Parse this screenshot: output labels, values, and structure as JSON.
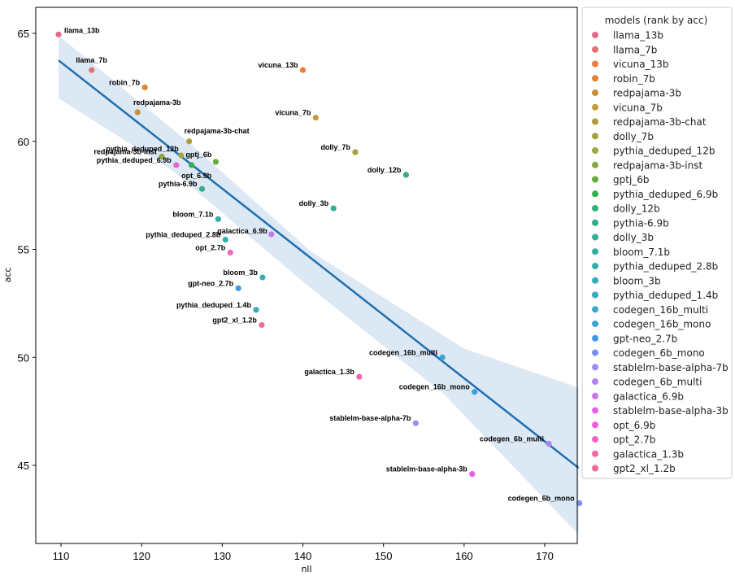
{
  "chart_data": {
    "type": "scatter",
    "title": "",
    "xlabel": "nll",
    "ylabel": "acc",
    "xlim": [
      106.8,
      177.8
    ],
    "ylim": [
      41.2,
      66.0
    ],
    "xticks": [
      110,
      120,
      130,
      140,
      150,
      160,
      170
    ],
    "yticks": [
      45,
      50,
      55,
      60,
      65
    ],
    "grid": false,
    "legend": {
      "title": "models (rank by acc)",
      "placement": "outside-right"
    },
    "regression": {
      "line": [
        [
          109.7,
          63.75
        ],
        [
          174.2,
          44.88
        ]
      ],
      "ci_band_upper": [
        [
          109.7,
          64.9
        ],
        [
          126,
          59.9
        ],
        [
          141,
          54.9
        ],
        [
          160,
          50.4
        ],
        [
          174.2,
          48.6
        ]
      ],
      "ci_band_lower": [
        [
          109.7,
          62.0
        ],
        [
          124,
          58.6
        ],
        [
          140,
          53.5
        ],
        [
          157.5,
          48.3
        ],
        [
          174.2,
          41.8
        ]
      ],
      "color": "#1f6fb0",
      "band_color": "#dce8f4"
    },
    "points": [
      {
        "name": "llama_13b",
        "x": 109.7,
        "y": 64.95,
        "color": "#e8678a",
        "label_pos": "right"
      },
      {
        "name": "llama_7b",
        "x": 113.8,
        "y": 63.3,
        "color": "#e2716f",
        "label_pos": "top"
      },
      {
        "name": "vicuna_13b",
        "x": 140.0,
        "y": 63.3,
        "color": "#ef7c3a",
        "label_pos": "left"
      },
      {
        "name": "robin_7b",
        "x": 120.4,
        "y": 62.5,
        "color": "#dd8638",
        "label_pos": "left"
      },
      {
        "name": "redpajama-3b",
        "x": 119.5,
        "y": 61.35,
        "color": "#c78f40",
        "label_pos": "top"
      },
      {
        "name": "vicuna_7b",
        "x": 141.6,
        "y": 61.1,
        "color": "#c49a3c",
        "label_pos": "left"
      },
      {
        "name": "redpajama-3b-chat",
        "x": 125.9,
        "y": 60.0,
        "color": "#b29a3a",
        "label_pos": "top"
      },
      {
        "name": "dolly_7b",
        "x": 146.5,
        "y": 59.5,
        "color": "#a6a23b",
        "label_pos": "left"
      },
      {
        "name": "pythia_deduped_12b",
        "x": 124.9,
        "y": 59.35,
        "color": "#9ea83e",
        "label_pos": "top-left"
      },
      {
        "name": "redpajama-3b-inst",
        "x": 122.5,
        "y": 59.3,
        "color": "#89a93f",
        "label_pos": "left"
      },
      {
        "name": "gptj_6b",
        "x": 129.2,
        "y": 59.05,
        "color": "#63ad3d",
        "label_pos": "top-left"
      },
      {
        "name": "pythia_deduped_6.9b",
        "x": 126.2,
        "y": 58.9,
        "color": "#33af4f",
        "label_pos": "bottom"
      },
      {
        "name": "dolly_12b",
        "x": 152.8,
        "y": 58.45,
        "color": "#35b173",
        "label_pos": "left"
      },
      {
        "name": "pythia-6.9b",
        "x": 127.5,
        "y": 57.8,
        "color": "#32ae8a",
        "label_pos": "left"
      },
      {
        "name": "dolly_3b",
        "x": 143.8,
        "y": 56.9,
        "color": "#33ae98",
        "label_pos": "left"
      },
      {
        "name": "bloom_7.1b",
        "x": 129.5,
        "y": 56.4,
        "color": "#34aea4",
        "label_pos": "left"
      },
      {
        "name": "pythia_deduped_2.8b",
        "x": 130.4,
        "y": 55.45,
        "color": "#36adad",
        "label_pos": "left"
      },
      {
        "name": "bloom_3b",
        "x": 135.0,
        "y": 53.7,
        "color": "#37abb6",
        "label_pos": "left"
      },
      {
        "name": "pythia_deduped_1.4b",
        "x": 134.2,
        "y": 52.2,
        "color": "#38a9c0",
        "label_pos": "left"
      },
      {
        "name": "codegen_16b_multi",
        "x": 157.3,
        "y": 50.0,
        "color": "#39a6cb",
        "label_pos": "left"
      },
      {
        "name": "codegen_16b_mono",
        "x": 161.3,
        "y": 48.4,
        "color": "#3aa2d8",
        "label_pos": "left"
      },
      {
        "name": "gpt-neo_2.7b",
        "x": 132.0,
        "y": 53.2,
        "color": "#3c9ae8",
        "label_pos": "left"
      },
      {
        "name": "codegen_6b_mono",
        "x": 174.3,
        "y": 43.25,
        "color": "#7890ef",
        "label_pos": "left"
      },
      {
        "name": "stablelm-base-alpha-7b",
        "x": 154.0,
        "y": 46.95,
        "color": "#9a8ef0",
        "label_pos": "left"
      },
      {
        "name": "codegen_6b_multi",
        "x": 170.5,
        "y": 46.0,
        "color": "#b184ee",
        "label_pos": "left"
      },
      {
        "name": "galactica_6.9b",
        "x": 136.1,
        "y": 55.7,
        "color": "#c978ec",
        "label_pos": "left"
      },
      {
        "name": "stablelm-base-alpha-3b",
        "x": 161.0,
        "y": 44.6,
        "color": "#e661e9",
        "label_pos": "left"
      },
      {
        "name": "opt_6.9b",
        "x": 124.3,
        "y": 58.9,
        "color": "#ee5fd8",
        "label_pos": "left"
      },
      {
        "name": "opt_2.7b",
        "x": 131.0,
        "y": 54.85,
        "color": "#f064c2",
        "label_pos": "left"
      },
      {
        "name": "galactica_1.3b",
        "x": 147.0,
        "y": 49.1,
        "color": "#f268ab",
        "label_pos": "left"
      },
      {
        "name": "gpt2_xl_1.2b",
        "x": 134.9,
        "y": 51.5,
        "color": "#f06b94",
        "label_pos": "left"
      }
    ],
    "point_label_overrides": {
      "pythia_deduped_6.9b": "opt_6.9b",
      "opt_6.9b": "pythia_deduped_6.9b"
    }
  }
}
